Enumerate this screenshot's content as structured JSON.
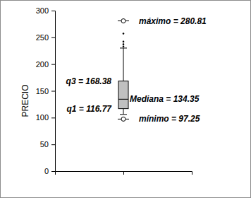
{
  "chart_data": {
    "type": "box",
    "y_label": "PRECIO",
    "categories": [
      null
    ],
    "ylim": [
      0,
      300
    ],
    "yticks": [
      0,
      50,
      100,
      150,
      200,
      250,
      300
    ],
    "tick_labels": "y",
    "color": "#c0c0c0",
    "box": {
      "min": 97.25,
      "whisker_low": 106,
      "q1": 116.77,
      "median": 134.35,
      "q3": 168.38,
      "whisker_high": 230,
      "max": 280.81,
      "outliers": [
        257,
        242,
        237,
        233
      ],
      "stat_labels": {
        "max": "máximo = 280.81",
        "q3": "q3 = 168.38",
        "median": "Mediana = 134.35",
        "q1": "q1 = 116.77",
        "min": "mínimo = 97.25"
      }
    }
  }
}
